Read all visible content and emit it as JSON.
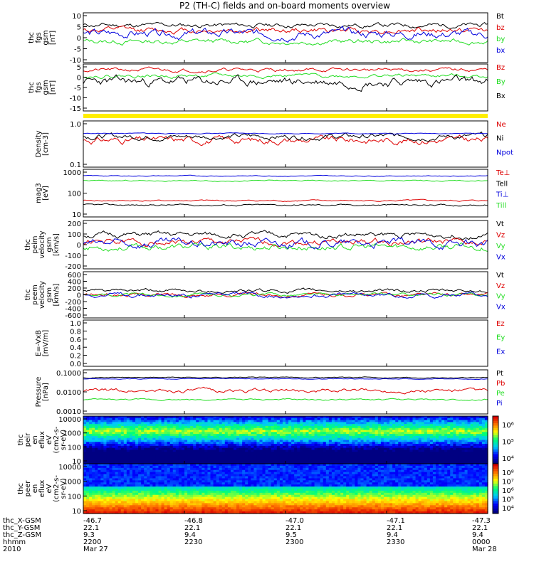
{
  "title": "P2 (TH-C) fields and on-board moments overview",
  "colors": {
    "black": "#000000",
    "red": "#dd0000",
    "green": "#22dd22",
    "blue": "#0000dd",
    "yellow": "#ffee00"
  },
  "chart_data": [
    {
      "type": "line",
      "name": "fgs-gsm",
      "ylabel": [
        "thc",
        "fgs",
        "gsm",
        "[nT]"
      ],
      "yticks": [
        "10",
        "5",
        "0",
        "-5",
        "-10"
      ],
      "ylim": [
        -10,
        10
      ],
      "legend": [
        "Bt",
        "bz",
        "by",
        "bx"
      ],
      "series": [
        {
          "name": "Bt",
          "color": "black",
          "base": 5,
          "noise": 1.2,
          "seed": 11
        },
        {
          "name": "bz",
          "color": "red",
          "base": 3,
          "noise": 1.5,
          "seed": 12
        },
        {
          "name": "by",
          "color": "green",
          "base": -1.5,
          "noise": 1.3,
          "seed": 13
        },
        {
          "name": "bx",
          "color": "blue",
          "base": 1.5,
          "noise": 2.2,
          "seed": 14
        }
      ]
    },
    {
      "type": "line",
      "name": "fgs-gsm-2",
      "ylabel": [
        "thc",
        "fgs",
        "gsm",
        "[nT]"
      ],
      "yticks": [
        "5",
        "0",
        "-5",
        "-10",
        "-15"
      ],
      "ylim": [
        -18,
        6
      ],
      "legend": [
        "Bz",
        "By",
        "Bx"
      ],
      "series": [
        {
          "name": "Bz",
          "color": "red",
          "base": 3,
          "noise": 1.2,
          "seed": 21
        },
        {
          "name": "By",
          "color": "green",
          "base": 0,
          "noise": 1.2,
          "seed": 22
        },
        {
          "name": "Bx",
          "color": "black",
          "base": -3,
          "noise": 3,
          "seed": 23
        }
      ]
    },
    {
      "type": "line",
      "name": "density",
      "log": true,
      "ylabel": [
        "Density",
        "[cm-3]"
      ],
      "yticks": [
        "1.0",
        "0.1"
      ],
      "ylim": [
        0.1,
        1.3
      ],
      "legend": [
        "Ne",
        "Ni",
        "Npot"
      ],
      "series": [
        {
          "name": "Ne",
          "color": "red",
          "base": 0.45,
          "noise": 0.25,
          "seed": 31
        },
        {
          "name": "Ni",
          "color": "black",
          "base": 0.55,
          "noise": 0.2,
          "seed": 32
        },
        {
          "name": "Npot",
          "color": "blue",
          "base": 0.65,
          "noise": 0.03,
          "seed": 33
        }
      ]
    },
    {
      "type": "line",
      "name": "temperature",
      "log": true,
      "ylabel": [
        "mag3",
        "[eV]"
      ],
      "yticks": [
        "1000",
        "100",
        "10"
      ],
      "ylim": [
        10,
        1500
      ],
      "legend": [
        "Te⊥",
        "Tell",
        "Ti⊥",
        "Till"
      ],
      "series": [
        {
          "name": "Te⊥",
          "color": "red",
          "base": 55,
          "noise": 0.1,
          "seed": 41
        },
        {
          "name": "Tell",
          "color": "black",
          "base": 35,
          "noise": 0.12,
          "seed": 42
        },
        {
          "name": "Ti⊥",
          "color": "blue",
          "base": 750,
          "noise": 0.06,
          "seed": 43
        },
        {
          "name": "Till",
          "color": "green",
          "base": 450,
          "noise": 0.08,
          "seed": 44
        }
      ]
    },
    {
      "type": "line",
      "name": "peim-velocity",
      "ylabel": [
        "thc",
        "peim",
        "velocity",
        "gsm",
        "[km/s]"
      ],
      "yticks": [
        "200",
        "100",
        "0",
        "-100",
        "-200"
      ],
      "ylim": [
        -200,
        200
      ],
      "legend": [
        "Vt",
        "Vz",
        "Vy",
        "Vx"
      ],
      "series": [
        {
          "name": "Vt",
          "color": "black",
          "base": 80,
          "noise": 30,
          "seed": 51
        },
        {
          "name": "Vz",
          "color": "red",
          "base": 20,
          "noise": 35,
          "seed": 52
        },
        {
          "name": "Vy",
          "color": "green",
          "base": -20,
          "noise": 35,
          "seed": 53
        },
        {
          "name": "Vx",
          "color": "blue",
          "base": 10,
          "noise": 45,
          "seed": 54
        }
      ]
    },
    {
      "type": "line",
      "name": "peem-velocity",
      "ylabel": [
        "thc",
        "peem",
        "velocity",
        "gsm",
        "[km/s]"
      ],
      "yticks": [
        "600",
        "400",
        "200",
        "0",
        "-200",
        "-400",
        "-600"
      ],
      "ylim": [
        -600,
        600
      ],
      "legend": [
        "Vt",
        "Vz",
        "Vy",
        "Vx"
      ],
      "series": [
        {
          "name": "Vt",
          "color": "black",
          "base": 100,
          "noise": 60,
          "seed": 61
        },
        {
          "name": "Vz",
          "color": "red",
          "base": 0,
          "noise": 60,
          "seed": 62
        },
        {
          "name": "Vy",
          "color": "green",
          "base": 0,
          "noise": 50,
          "seed": 63
        },
        {
          "name": "Vx",
          "color": "blue",
          "base": 0,
          "noise": 70,
          "seed": 64
        }
      ]
    },
    {
      "type": "line",
      "name": "e-field",
      "ylabel": [
        "E=-VxB",
        "[mV/m]"
      ],
      "yticks": [
        "1.0",
        "0.8",
        "0.6",
        "0.4",
        "0.2",
        "0.0"
      ],
      "ylim": [
        0,
        1
      ],
      "legend": [
        "Ez",
        "Ey",
        "Ex"
      ],
      "series": []
    },
    {
      "type": "line",
      "name": "pressure",
      "log": true,
      "ylabel": [
        "Pressure",
        "[nPa]"
      ],
      "yticks": [
        "0.1000",
        "0.0100",
        "0.0010"
      ],
      "ylim": [
        0.0007,
        0.15
      ],
      "legend": [
        "Pt",
        "Pb",
        "Pe",
        "Pi"
      ],
      "series": [
        {
          "name": "Pt",
          "color": "black",
          "base": 0.06,
          "noise": 0.08,
          "seed": 71
        },
        {
          "name": "Pb",
          "color": "red",
          "base": 0.012,
          "noise": 0.3,
          "seed": 72
        },
        {
          "name": "Pe",
          "color": "green",
          "base": 0.004,
          "noise": 0.12,
          "seed": 73
        },
        {
          "name": "Pi",
          "color": "blue",
          "base": 0.05,
          "noise": 0.06,
          "seed": 74
        }
      ]
    },
    {
      "type": "heatmap",
      "name": "peir-spectrogram",
      "ylabel": [
        "thc",
        "peir",
        "en",
        "eflux",
        "eV",
        "(cm2-s-",
        "sr-eV)"
      ],
      "yticks": [
        "10000",
        "1000",
        "100",
        "10"
      ],
      "colorbar": [
        "10⁶",
        "10⁵",
        "10⁴"
      ]
    },
    {
      "type": "heatmap",
      "name": "peer-spectrogram",
      "ylabel": [
        "thc",
        "peer",
        "en",
        "eflux",
        "eV",
        "(cm2-s-",
        "sr-eV)"
      ],
      "yticks": [
        "10000",
        "1000",
        "100",
        "10"
      ],
      "colorbar": [
        "10⁸",
        "10⁷",
        "10⁶",
        "10⁵",
        "10⁴"
      ]
    }
  ],
  "xaxis": {
    "labels": [
      "thc_X-GSM",
      "thc_Y-GSM",
      "thc_Z-GSM",
      "hhmm",
      "2010"
    ],
    "columns": [
      [
        "-46.7",
        "22.1",
        "9.3",
        "2200",
        "Mar 27"
      ],
      [
        "-46.8",
        "22.1",
        "9.4",
        "2230",
        ""
      ],
      [
        "-47.0",
        "22.1",
        "9.5",
        "2300",
        ""
      ],
      [
        "-47.1",
        "22.1",
        "9.4",
        "2330",
        ""
      ],
      [
        "-47.3",
        "22.1",
        "9.4",
        "0000",
        "Mar 28"
      ]
    ]
  }
}
